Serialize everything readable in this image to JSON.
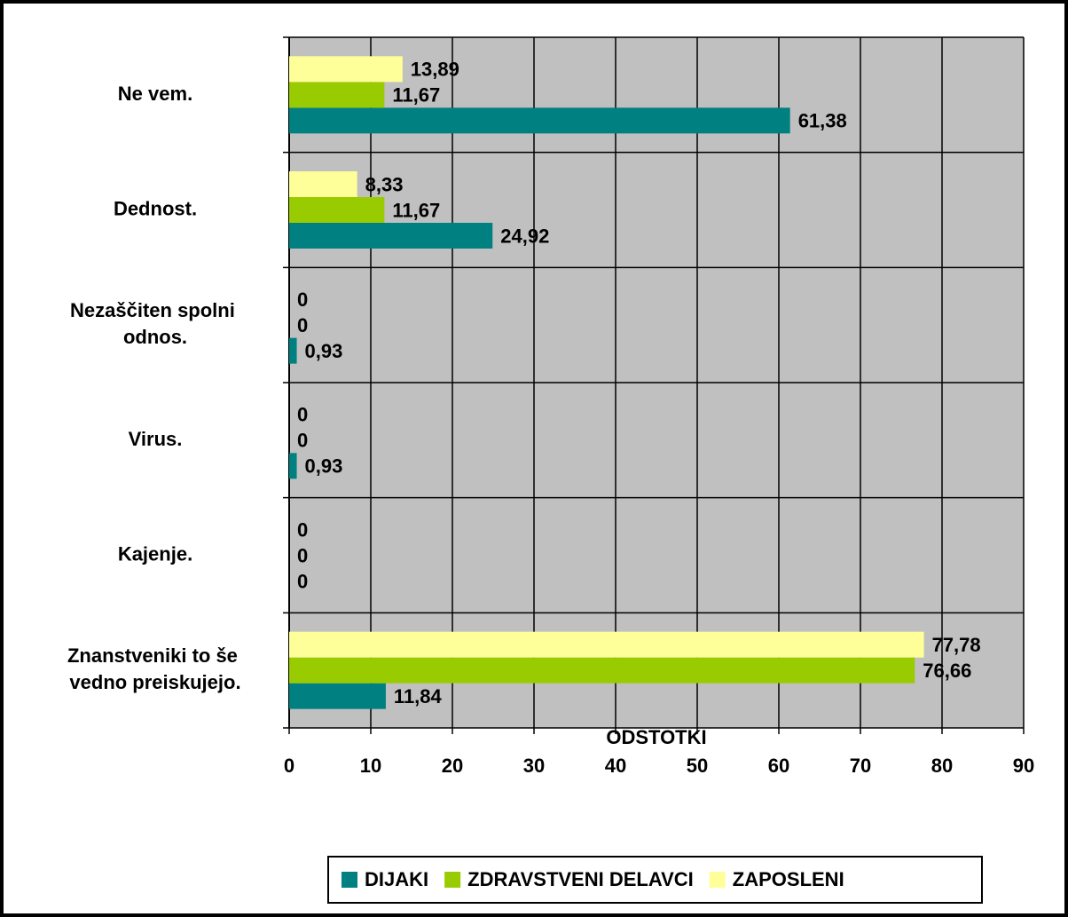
{
  "chart_data": {
    "type": "bar",
    "orientation": "horizontal",
    "xlabel": "ODSTOTKI",
    "categories": [
      "Ne vem.",
      "Dednost.",
      "Nezaščiten spolni odnos.",
      "Virus.",
      "Kajenje.",
      "Znanstveniki to še vedno preiskujejo."
    ],
    "series": [
      {
        "name": "DIJAKI",
        "color": "#008080",
        "values": [
          61.38,
          24.92,
          0.93,
          0.93,
          0,
          11.84
        ],
        "value_labels": [
          "61,38",
          "24,92",
          "0,93",
          "0,93",
          "0",
          "11,84"
        ]
      },
      {
        "name": "ZDRAVSTVENI DELAVCI",
        "color": "#99cc00",
        "values": [
          11.67,
          11.67,
          0,
          0,
          0,
          76.66
        ],
        "value_labels": [
          "11,67",
          "11,67",
          "0",
          "0",
          "0",
          "76,66"
        ]
      },
      {
        "name": "ZAPOSLENI",
        "color": "#ffff99",
        "values": [
          13.89,
          8.33,
          0,
          0,
          0,
          77.78
        ],
        "value_labels": [
          "13,89",
          "8,33",
          "0",
          "0",
          "0",
          "77,78"
        ]
      }
    ],
    "xlim": [
      0,
      90
    ],
    "xticks": [
      0,
      10,
      20,
      30,
      40,
      50,
      60,
      70,
      80,
      90
    ],
    "grid": true,
    "legend": "bottom"
  }
}
